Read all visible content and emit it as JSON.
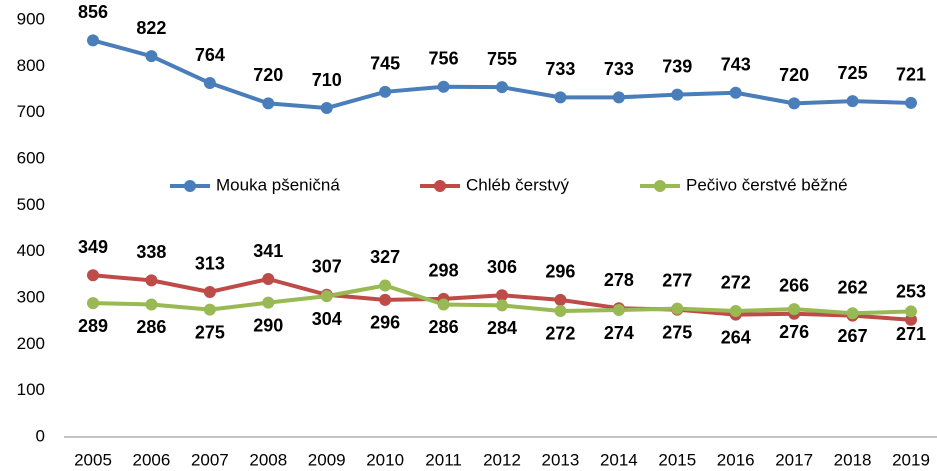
{
  "chart_data": {
    "type": "line",
    "categories": [
      "2005",
      "2006",
      "2007",
      "2008",
      "2009",
      "2010",
      "2011",
      "2012",
      "2013",
      "2014",
      "2015",
      "2016",
      "2017",
      "2018",
      "2019"
    ],
    "ylim": [
      0,
      900
    ],
    "yticks": [
      0,
      100,
      200,
      300,
      400,
      500,
      600,
      700,
      800,
      900
    ],
    "legend": "center",
    "series": [
      {
        "name": "Mouka pšeničná",
        "color": "#4a7ebb",
        "label_color": "#2b4f81",
        "values": [
          856,
          822,
          764,
          720,
          710,
          745,
          756,
          755,
          733,
          733,
          739,
          743,
          720,
          725,
          721
        ],
        "label_positions": [
          "above",
          "above",
          "above",
          "above",
          "above",
          "above",
          "above",
          "above",
          "above",
          "above",
          "above",
          "above",
          "above",
          "above",
          "above"
        ]
      },
      {
        "name": "Chléb čerstvý",
        "color": "#be4b48",
        "label_color": "#c0504d",
        "values": [
          349,
          338,
          313,
          341,
          307,
          296,
          298,
          306,
          296,
          278,
          275,
          264,
          266,
          262,
          253
        ],
        "label_positions": [
          "above",
          "above",
          "above",
          "above",
          "above",
          "below",
          "above",
          "above",
          "above",
          "above",
          "below",
          "below",
          "above",
          "above",
          "above"
        ]
      },
      {
        "name": "Pečivo čerstvé běžné",
        "color": "#98b954",
        "label_color": "#77933c",
        "values": [
          289,
          286,
          275,
          290,
          304,
          327,
          286,
          284,
          272,
          274,
          277,
          272,
          276,
          267,
          271
        ],
        "label_positions": [
          "below",
          "below",
          "below",
          "below",
          "below",
          "above",
          "below",
          "below",
          "below",
          "below",
          "above",
          "above",
          "below",
          "below",
          "below"
        ]
      }
    ]
  }
}
